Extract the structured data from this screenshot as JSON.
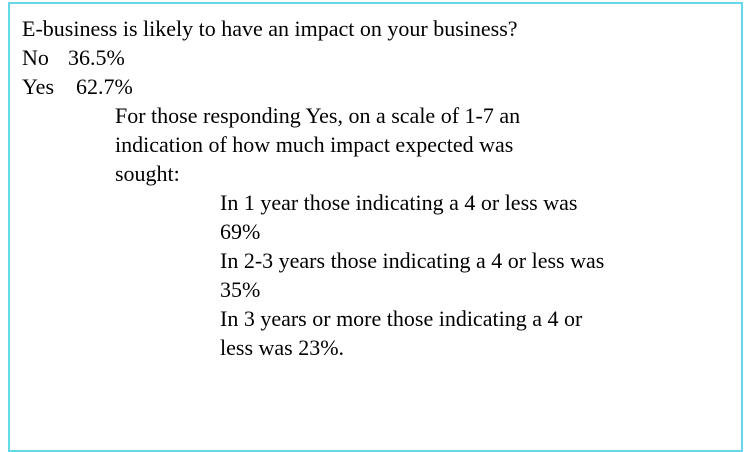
{
  "question": "E-business is likely to have an impact on your business?",
  "answers": [
    {
      "label": "No",
      "share": "36.5%"
    },
    {
      "label": "Yes",
      "share": "62.7%"
    }
  ],
  "followup": {
    "lines": [
      "For those responding Yes, on a scale of 1-7 an",
      "indication of how much impact expected was",
      "sought:"
    ],
    "results": [
      {
        "lines": [
          "In 1 year those indicating a 4 or less was",
          "69%"
        ]
      },
      {
        "lines": [
          "In 2-3 years those indicating a 4 or less was",
          "35%"
        ]
      },
      {
        "lines": [
          "In 3 years or more those indicating a 4 or",
          "less was 23%."
        ]
      }
    ]
  }
}
